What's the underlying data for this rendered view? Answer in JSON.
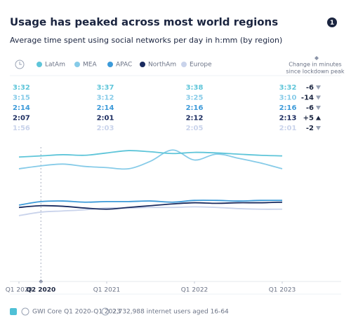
{
  "title": "Usage has peaked across most world regions",
  "badge": "1",
  "subtitle": "Average time spent using social networks per day in h:mm (by region)",
  "chart_data": {
    "type": "line",
    "categories": [
      "Q1 2020",
      "Q2 2020",
      null,
      null,
      "Q1 2021",
      null,
      null,
      null,
      "Q1 2022",
      null,
      null,
      null,
      "Q1 2023"
    ],
    "highlight": "Q2 2020",
    "ylim": [
      0,
      245
    ],
    "change_header": [
      "Change in minutes",
      "since lockdown peak"
    ],
    "series": [
      {
        "name": "LatAm",
        "color": "#5ec5d9",
        "values": [
          210,
          212,
          214,
          213,
          217,
          221,
          219,
          216,
          218,
          217,
          215,
          213,
          212
        ],
        "value_labels": [
          null,
          "3:32",
          null,
          null,
          "3:37",
          null,
          null,
          null,
          "3:38",
          null,
          null,
          null,
          "3:32"
        ],
        "change": -6
      },
      {
        "name": "MEA",
        "color": "#86cbe8",
        "values": [
          190,
          195,
          198,
          194,
          192,
          190,
          203,
          222,
          205,
          215,
          208,
          200,
          190
        ],
        "value_labels": [
          null,
          "3:15",
          null,
          null,
          "3:12",
          null,
          null,
          null,
          "3:25",
          null,
          null,
          null,
          "3:10"
        ],
        "change": -14
      },
      {
        "name": "APAC",
        "color": "#3c9ad9",
        "values": [
          128,
          134,
          135,
          133,
          134,
          134,
          135,
          133,
          136,
          136,
          135,
          136,
          136
        ],
        "value_labels": [
          null,
          "2:14",
          null,
          null,
          "2:14",
          null,
          null,
          null,
          "2:16",
          null,
          null,
          null,
          "2:16"
        ],
        "change": -6
      },
      {
        "name": "NorthAm",
        "color": "#1a2b5f",
        "values": [
          124,
          127,
          126,
          123,
          121,
          124,
          127,
          130,
          132,
          131,
          132,
          132,
          133
        ],
        "value_labels": [
          null,
          "2:07",
          null,
          null,
          "2:01",
          null,
          null,
          null,
          "2:12",
          null,
          null,
          null,
          "2:13"
        ],
        "change": {
          "value": 5,
          "label": "+5"
        }
      },
      {
        "name": "Europe",
        "color": "#c9d3eb",
        "values": [
          110,
          116,
          118,
          120,
          123,
          123,
          124,
          124,
          125,
          124,
          122,
          121,
          121
        ],
        "value_labels": [
          null,
          "1:56",
          null,
          null,
          "2:03",
          null,
          null,
          null,
          "2:05",
          null,
          null,
          null,
          "2:01"
        ],
        "change": -2
      }
    ]
  },
  "footer": {
    "source": "GWI Core Q1 2020-Q1 2023",
    "sample": "2,732,988 internet users aged 16-64"
  }
}
